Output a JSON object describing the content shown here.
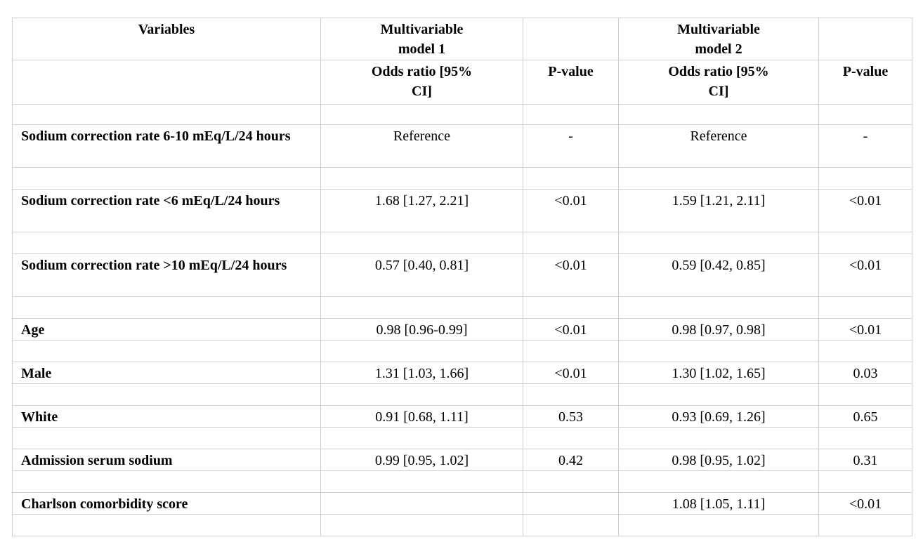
{
  "table": {
    "header": {
      "variables": "Variables",
      "groups": [
        {
          "title": "Multivariable model 1",
          "odds": "Odds ratio [95% CI]",
          "p": "P-value"
        },
        {
          "title": "Multivariable model 2",
          "odds": "Odds ratio [95% CI]",
          "p": "P-value"
        }
      ]
    },
    "rows": [
      {
        "variable": "Sodium correction rate 6-10 mEq/L/24 hours",
        "model1": {
          "odds": "Reference",
          "p": "-"
        },
        "model2": {
          "odds": "Reference",
          "p": "-"
        }
      },
      {
        "variable": "Sodium correction rate <6 mEq/L/24 hours",
        "model1": {
          "odds": "1.68 [1.27, 2.21]",
          "p": "<0.01"
        },
        "model2": {
          "odds": "1.59 [1.21, 2.11]",
          "p": "<0.01"
        }
      },
      {
        "variable": "Sodium correction rate >10 mEq/L/24 hours",
        "model1": {
          "odds": "0.57 [0.40, 0.81]",
          "p": "<0.01"
        },
        "model2": {
          "odds": "0.59 [0.42, 0.85]",
          "p": "<0.01"
        }
      },
      {
        "variable": "Age",
        "model1": {
          "odds": "0.98 [0.96-0.99]",
          "p": "<0.01"
        },
        "model2": {
          "odds": "0.98 [0.97, 0.98]",
          "p": "<0.01"
        }
      },
      {
        "variable": "Male",
        "model1": {
          "odds": "1.31 [1.03, 1.66]",
          "p": "<0.01"
        },
        "model2": {
          "odds": "1.30 [1.02, 1.65]",
          "p": "0.03"
        }
      },
      {
        "variable": "White",
        "model1": {
          "odds": "0.91 [0.68, 1.11]",
          "p": "0.53"
        },
        "model2": {
          "odds": "0.93 [0.69, 1.26]",
          "p": "0.65"
        }
      },
      {
        "variable": "Admission serum sodium",
        "model1": {
          "odds": "0.99 [0.95, 1.02]",
          "p": "0.42"
        },
        "model2": {
          "odds": "0.98 [0.95, 1.02]",
          "p": "0.31"
        }
      },
      {
        "variable": "Charlson comorbidity score",
        "model2": {
          "odds": "1.08 [1.05, 1.11]",
          "p": "<0.01"
        }
      }
    ]
  }
}
